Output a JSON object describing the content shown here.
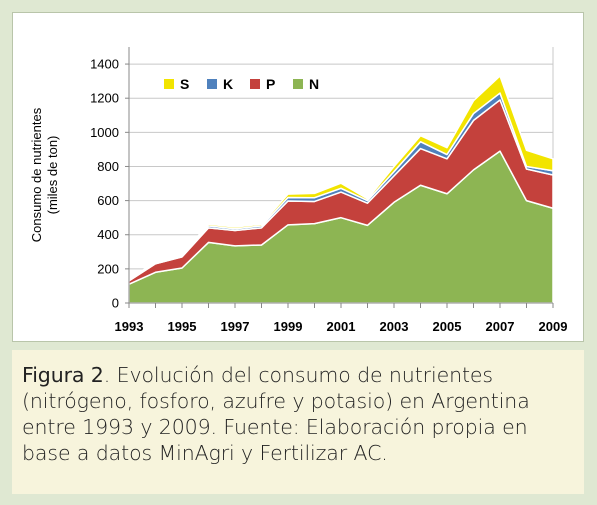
{
  "chart_data": {
    "type": "area",
    "stacked": true,
    "ylabel": "Consumo de nutrientes (miles de ton)",
    "ylabel_lines": [
      "Consumo de nutrientes",
      "(miles de ton)"
    ],
    "xlabel": "",
    "ylim": [
      0,
      1500
    ],
    "yticks": [
      0,
      200,
      400,
      600,
      800,
      1000,
      1200,
      1400
    ],
    "xticks": [
      1993,
      1995,
      1997,
      1999,
      2001,
      2003,
      2005,
      2007,
      2009
    ],
    "grid": true,
    "legend_placement": "top-left",
    "x": [
      1993,
      1994,
      1995,
      1996,
      1997,
      1998,
      1999,
      2000,
      2001,
      2002,
      2003,
      2004,
      2005,
      2006,
      2007,
      2008,
      2009
    ],
    "series": [
      {
        "name": "N",
        "color": "#8db553",
        "values": [
          110,
          180,
          205,
          355,
          335,
          340,
          458,
          465,
          500,
          455,
          590,
          690,
          640,
          780,
          890,
          600,
          555
        ]
      },
      {
        "name": "P",
        "color": "#c4413c",
        "values": [
          20,
          50,
          65,
          85,
          90,
          100,
          140,
          130,
          150,
          130,
          155,
          215,
          205,
          290,
          300,
          185,
          195
        ]
      },
      {
        "name": "K",
        "color": "#4f81bd",
        "values": [
          5,
          8,
          8,
          12,
          10,
          12,
          20,
          22,
          22,
          15,
          25,
          40,
          25,
          40,
          40,
          15,
          25
        ]
      },
      {
        "name": "S",
        "color": "#f2e400",
        "values": [
          2,
          5,
          8,
          10,
          10,
          10,
          20,
          25,
          30,
          10,
          30,
          35,
          40,
          75,
          100,
          95,
          70
        ]
      }
    ],
    "legend_order": [
      "S",
      "K",
      "P",
      "N"
    ]
  },
  "caption": {
    "label": "Figura 2",
    "text": ". Evolución del consumo de nutrientes (nitrógeno, fosforo, azufre y potasio) en Argentina entre 1993 y 2009. Fuente: Elaboración propia en base a datos MinAgri y Fertilizar AC."
  }
}
